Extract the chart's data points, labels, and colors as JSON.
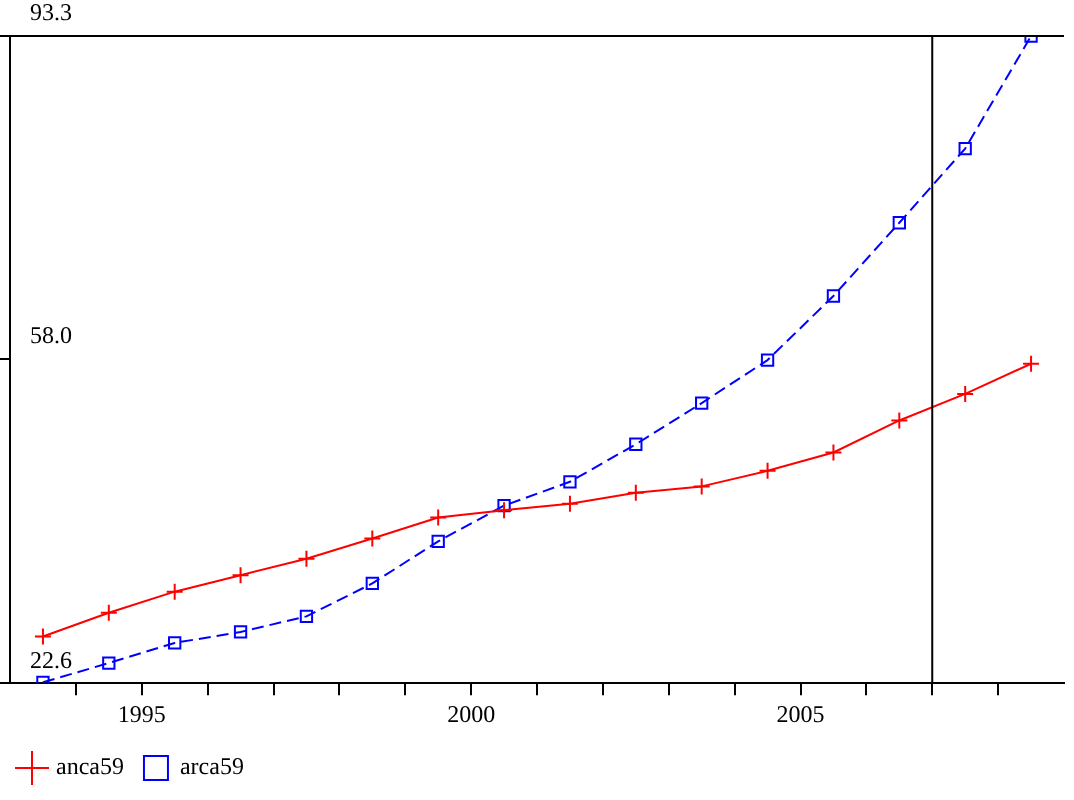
{
  "chart_data": {
    "type": "line",
    "x": [
      1993.5,
      1994.5,
      1995.5,
      1996.5,
      1997.5,
      1998.5,
      1999.5,
      2000.5,
      2001.5,
      2002.5,
      2003.5,
      2004.5,
      2005.5,
      2006.5,
      2007.5,
      2008.5
    ],
    "series": [
      {
        "name": "anca59",
        "color": "#ff0000",
        "marker": "cross",
        "line_style": "solid",
        "values": [
          27.7,
          30.3,
          32.6,
          34.4,
          36.2,
          38.4,
          40.7,
          41.5,
          42.2,
          43.4,
          44.1,
          45.8,
          47.8,
          51.3,
          54.2,
          57.5
        ]
      },
      {
        "name": "arca59",
        "color": "#0000ff",
        "marker": "square",
        "line_style": "dashed",
        "values": [
          22.7,
          24.8,
          27.0,
          28.2,
          29.9,
          33.5,
          38.1,
          42.0,
          44.6,
          48.7,
          53.2,
          57.9,
          64.9,
          72.9,
          81.0,
          93.3
        ]
      }
    ],
    "xlim": [
      1993,
      2009
    ],
    "ylim": [
      22.6,
      93.3
    ],
    "xticks": [
      {
        "value": 1994,
        "label": null
      },
      1995,
      {
        "value": 1996,
        "label": null
      },
      {
        "value": 1997,
        "label": null
      },
      {
        "value": 1998,
        "label": null
      },
      {
        "value": 1999,
        "label": null
      },
      2000,
      {
        "value": 2001,
        "label": null
      },
      {
        "value": 2002,
        "label": null
      },
      {
        "value": 2003,
        "label": null
      },
      {
        "value": 2004,
        "label": null
      },
      2005,
      {
        "value": 2006,
        "label": null
      },
      {
        "value": 2007,
        "label": null
      },
      {
        "value": 2008,
        "label": null
      }
    ],
    "yticks": [
      {
        "value": 22.6,
        "label": "22.6"
      },
      {
        "value": 58.0,
        "label": "58.0"
      },
      {
        "value": 93.3,
        "label": "93.3"
      }
    ],
    "ref_lines": [
      {
        "axis": "x",
        "value": 2007,
        "color": "#000000"
      }
    ],
    "grid": false,
    "legend": "bottom left"
  }
}
